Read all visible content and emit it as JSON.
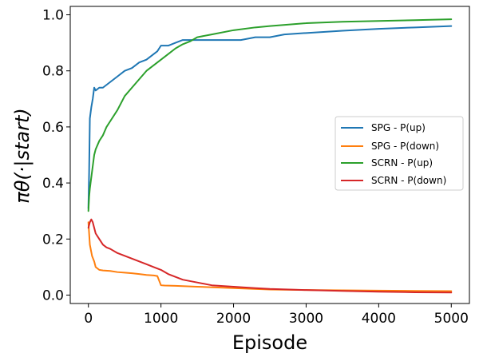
{
  "chart_data": {
    "type": "line",
    "title": "",
    "xlabel": "Episode",
    "ylabel": "πθ(·|start)",
    "xlim": [
      -250,
      5250
    ],
    "ylim": [
      -0.03,
      1.03
    ],
    "xticks": [
      0,
      1000,
      2000,
      3000,
      4000,
      5000
    ],
    "xtick_labels": [
      "0",
      "1000",
      "2000",
      "3000",
      "4000",
      "5000"
    ],
    "yticks": [
      0.0,
      0.2,
      0.4,
      0.6,
      0.8,
      1.0
    ],
    "ytick_labels": [
      "0.0",
      "0.2",
      "0.4",
      "0.6",
      "0.8",
      "1.0"
    ],
    "grid": false,
    "legend_position": "center-right",
    "series": [
      {
        "name": "SPG - P(up)",
        "color": "#1f77b4",
        "x": [
          0,
          10,
          20,
          40,
          60,
          80,
          100,
          150,
          200,
          300,
          400,
          500,
          600,
          700,
          800,
          900,
          950,
          1000,
          1050,
          1100,
          1200,
          1300,
          1400,
          1500,
          1700,
          1900,
          2000,
          2100,
          2300,
          2500,
          2700,
          3000,
          3500,
          4000,
          4500,
          5000
        ],
        "y": [
          0.31,
          0.44,
          0.63,
          0.67,
          0.7,
          0.74,
          0.73,
          0.74,
          0.74,
          0.76,
          0.78,
          0.8,
          0.81,
          0.83,
          0.84,
          0.86,
          0.87,
          0.89,
          0.89,
          0.89,
          0.9,
          0.91,
          0.91,
          0.91,
          0.91,
          0.91,
          0.91,
          0.91,
          0.92,
          0.92,
          0.93,
          0.935,
          0.943,
          0.95,
          0.955,
          0.96
        ]
      },
      {
        "name": "SPG - P(down)",
        "color": "#ff7f0e",
        "x": [
          0,
          10,
          20,
          50,
          80,
          100,
          150,
          200,
          300,
          400,
          500,
          600,
          700,
          800,
          900,
          950,
          1000,
          1050,
          1200,
          1500,
          2000,
          2500,
          3000,
          3500,
          4000,
          4500,
          5000
        ],
        "y": [
          0.26,
          0.22,
          0.18,
          0.14,
          0.12,
          0.1,
          0.09,
          0.088,
          0.086,
          0.082,
          0.08,
          0.078,
          0.075,
          0.072,
          0.07,
          0.068,
          0.035,
          0.034,
          0.033,
          0.03,
          0.025,
          0.02,
          0.018,
          0.017,
          0.016,
          0.015,
          0.014
        ]
      },
      {
        "name": "SCRN - P(up)",
        "color": "#2ca02c",
        "x": [
          0,
          10,
          20,
          40,
          60,
          80,
          100,
          150,
          200,
          250,
          300,
          400,
          500,
          600,
          700,
          800,
          900,
          1000,
          1100,
          1200,
          1300,
          1400,
          1500,
          1700,
          2000,
          2300,
          2500,
          3000,
          3500,
          4000,
          4500,
          5000
        ],
        "y": [
          0.3,
          0.35,
          0.38,
          0.42,
          0.46,
          0.5,
          0.52,
          0.55,
          0.57,
          0.6,
          0.62,
          0.66,
          0.71,
          0.74,
          0.77,
          0.8,
          0.82,
          0.84,
          0.86,
          0.88,
          0.895,
          0.905,
          0.92,
          0.93,
          0.945,
          0.955,
          0.96,
          0.97,
          0.975,
          0.978,
          0.981,
          0.984
        ]
      },
      {
        "name": "SCRN - P(down)",
        "color": "#d62728",
        "x": [
          0,
          10,
          20,
          40,
          60,
          80,
          100,
          150,
          200,
          250,
          300,
          400,
          500,
          600,
          700,
          800,
          900,
          1000,
          1100,
          1200,
          1300,
          1500,
          1700,
          2000,
          2300,
          2500,
          3000,
          3500,
          4000,
          4500,
          5000
        ],
        "y": [
          0.24,
          0.25,
          0.26,
          0.27,
          0.26,
          0.24,
          0.22,
          0.2,
          0.18,
          0.17,
          0.165,
          0.15,
          0.14,
          0.13,
          0.12,
          0.11,
          0.1,
          0.09,
          0.075,
          0.065,
          0.055,
          0.045,
          0.035,
          0.03,
          0.025,
          0.022,
          0.018,
          0.015,
          0.012,
          0.01,
          0.009
        ]
      }
    ]
  }
}
